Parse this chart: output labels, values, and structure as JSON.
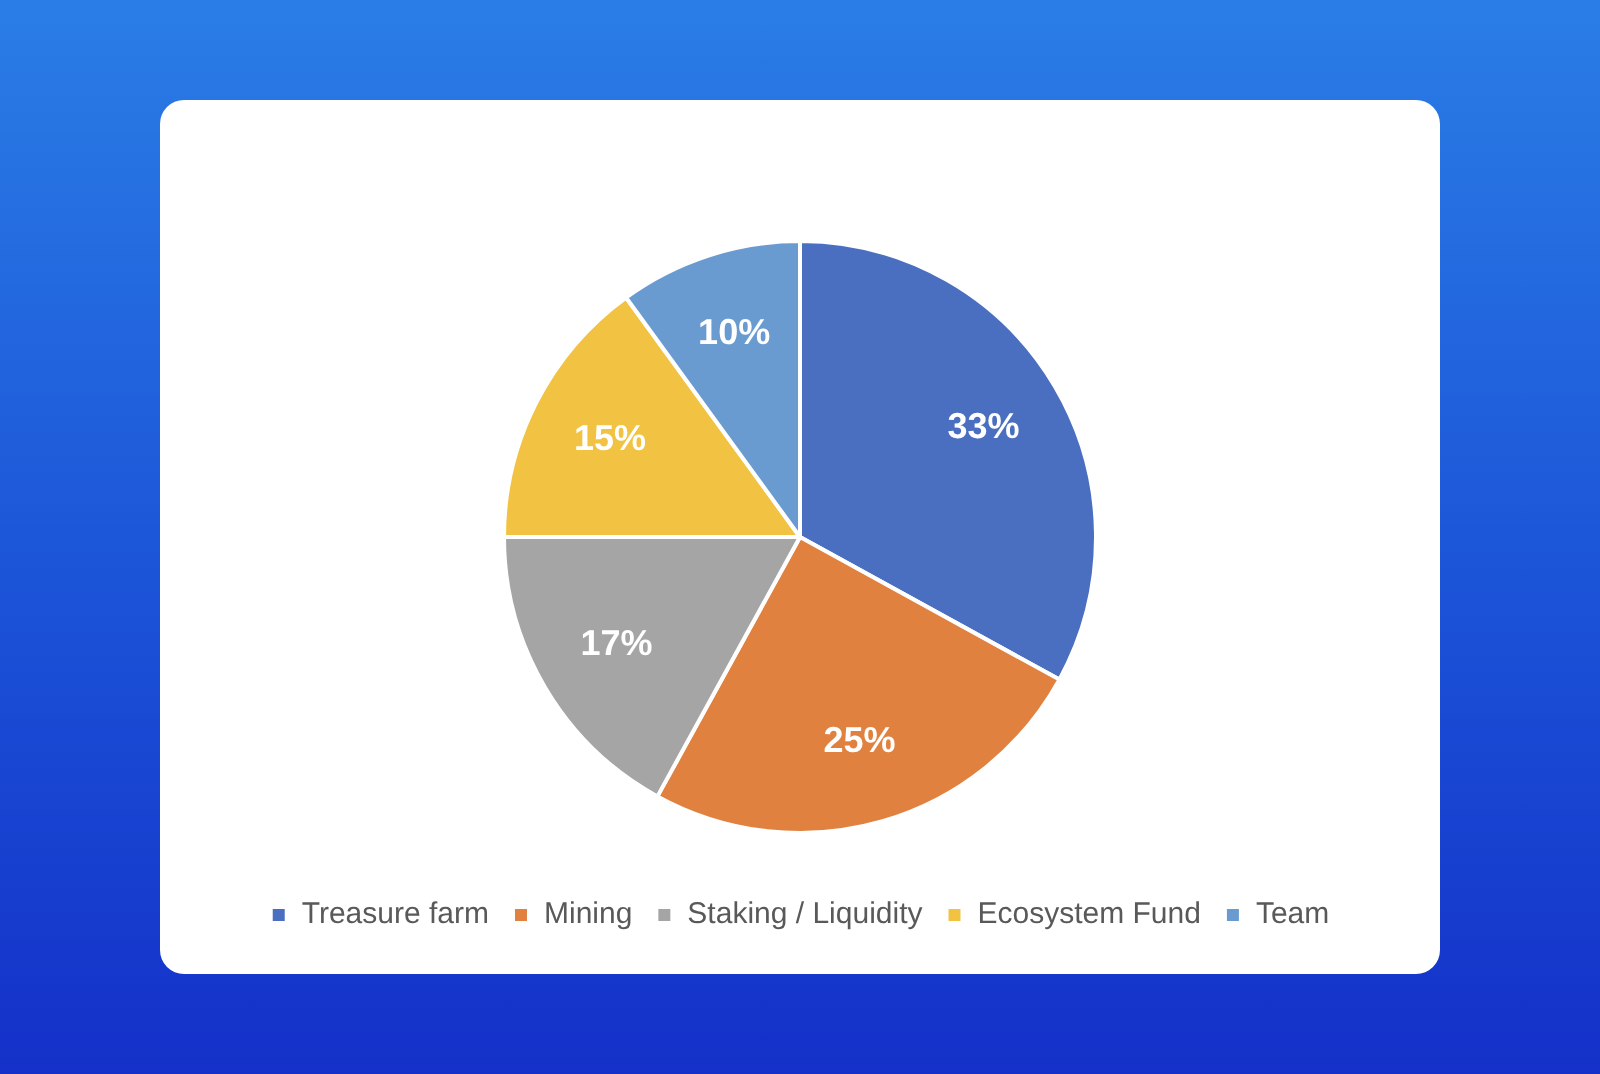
{
  "chart_data": {
    "type": "pie",
    "categories": [
      "Treasure farm",
      "Mining",
      "Staking / Liquidity",
      "Ecosystem Fund",
      "Team"
    ],
    "values": [
      33,
      25,
      17,
      15,
      10
    ],
    "colors": [
      "#4a6fc0",
      "#e0813f",
      "#a5a5a5",
      "#f2c342",
      "#6a9bd0"
    ],
    "value_labels": [
      "33%",
      "25%",
      "17%",
      "15%",
      "10%"
    ],
    "legend": "bottom"
  }
}
